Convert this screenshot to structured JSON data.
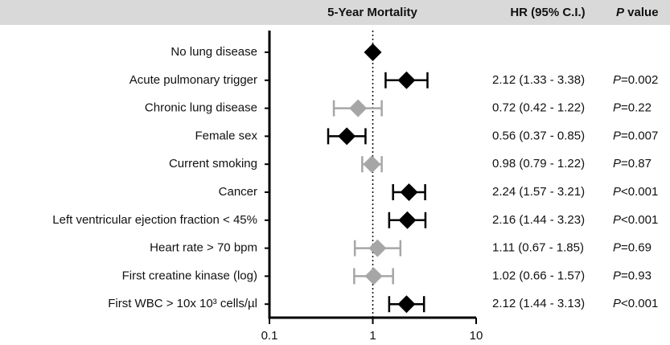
{
  "chart_data": {
    "type": "forest",
    "header": {
      "plot": "5-Year Mortality",
      "hr": "HR (95% C.I.)",
      "p": "P value"
    },
    "categories": [
      "No lung disease",
      "Acute pulmonary trigger",
      "Chronic lung disease",
      "Female sex",
      "Current smoking",
      "Cancer",
      "Left ventricular ejection fraction < 45%",
      "Heart rate > 70 bpm",
      "First creatine kinase (log)",
      "First WBC > 10x 10³ cells/µl"
    ],
    "values": [
      1,
      2.12,
      0.72,
      0.56,
      0.98,
      2.24,
      2.16,
      1.11,
      1.02,
      2.12
    ],
    "lower": [
      null,
      1.33,
      0.42,
      0.37,
      0.79,
      1.57,
      1.44,
      0.67,
      0.66,
      1.44
    ],
    "upper": [
      null,
      3.38,
      1.22,
      0.85,
      1.22,
      3.21,
      3.23,
      1.85,
      1.57,
      3.13
    ],
    "value_labels": [
      null,
      "2.12 (1.33 - 3.38)",
      "0.72 (0.42 - 1.22)",
      "0.56 (0.37 - 0.85)",
      "0.98 (0.79 - 1.22)",
      "2.24 (1.57 - 3.21)",
      "2.16 (1.44 - 3.23)",
      "1.11 (0.67 - 1.85)",
      "1.02 (0.66 - 1.57)",
      "2.12 (1.44 - 3.13)"
    ],
    "p_labels": [
      null,
      "P=0.002",
      "P=0.22",
      "P=0.007",
      "P=0.87",
      "P<0.001",
      "P<0.001",
      "P=0.69",
      "P=0.93",
      "P<0.001"
    ],
    "colors": [
      "#000000",
      "#000000",
      "#a6a6a6",
      "#000000",
      "#a6a6a6",
      "#000000",
      "#000000",
      "#a6a6a6",
      "#a6a6a6",
      "#000000"
    ],
    "xscale": "log",
    "xlim": [
      0.1,
      10
    ],
    "xticks": [
      0.1,
      1,
      10
    ],
    "reference": 1
  }
}
